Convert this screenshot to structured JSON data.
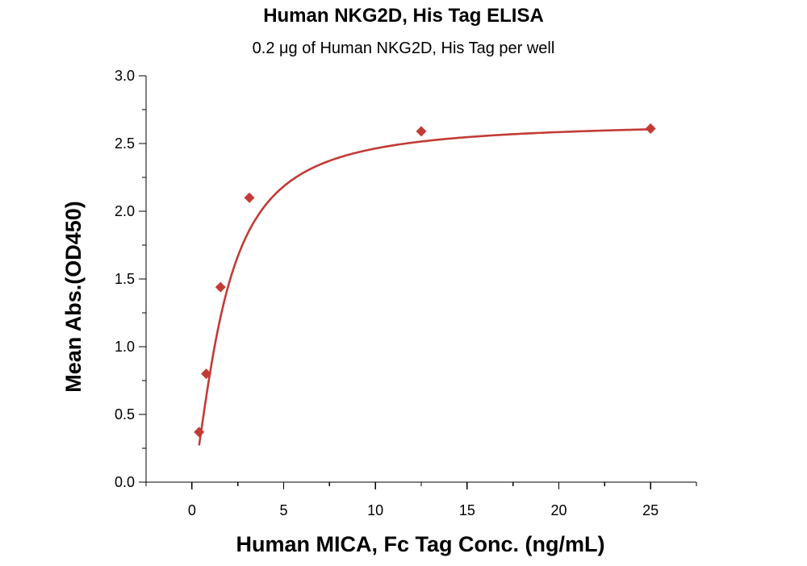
{
  "colors": {
    "series": "#c23b36",
    "axis": "#000000",
    "background": "#ffffff"
  },
  "chart_data": {
    "type": "scatter",
    "title": "Human NKG2D, His Tag ELISA",
    "subtitle": "0.2 μg of Human NKG2D, His Tag per well",
    "xlabel": "Human MICA, Fc Tag Conc. (ng/mL)",
    "ylabel": "Mean Abs.(OD450)",
    "xlim": [
      -2.5,
      27.5
    ],
    "ylim": [
      0,
      3.0
    ],
    "x_ticks": [
      0,
      5,
      10,
      15,
      20,
      25
    ],
    "x_tick_labels": [
      "0",
      "5",
      "10",
      "15",
      "20",
      "25"
    ],
    "y_ticks": [
      0,
      0.5,
      1.0,
      1.5,
      2.0,
      2.5,
      3.0
    ],
    "y_tick_labels": [
      "0.0",
      "0.5",
      "1.0",
      "1.5",
      "2.0",
      "2.5",
      "3.0"
    ],
    "grid": false,
    "series": [
      {
        "marker": "diamond",
        "x": [
          0.39,
          0.78,
          1.56,
          3.13,
          12.5,
          25
        ],
        "y": [
          0.37,
          0.8,
          1.44,
          2.1,
          2.59,
          2.61
        ],
        "fit": "saturation curve"
      }
    ]
  }
}
